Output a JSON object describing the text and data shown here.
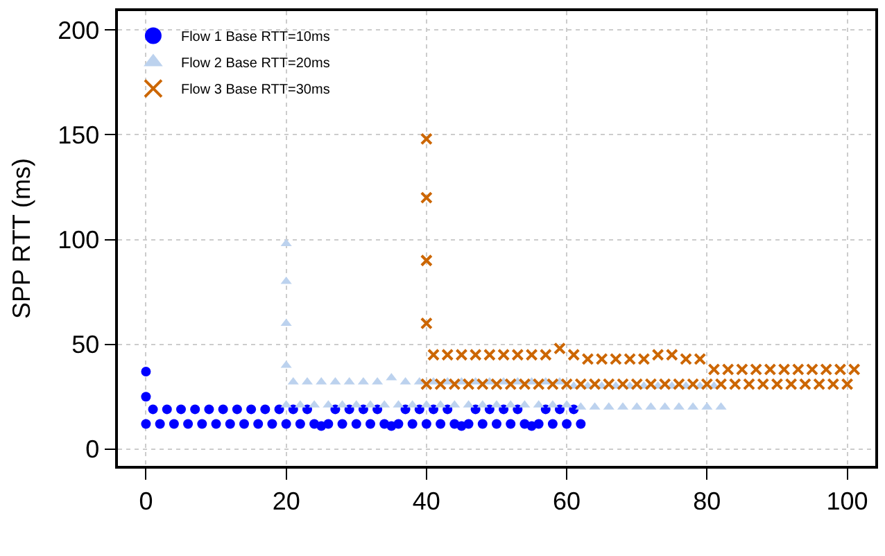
{
  "chart_data": {
    "type": "scatter",
    "ylabel": "SPP RTT (ms)",
    "xlim": [
      -4,
      104
    ],
    "ylim": [
      -8,
      209
    ],
    "xticks": [
      0,
      20,
      40,
      60,
      80,
      100
    ],
    "yticks": [
      0,
      50,
      100,
      150,
      200
    ],
    "grid": true,
    "legend": "top left",
    "series": [
      {
        "name": "Flow 1 Base RTT=10ms",
        "color": "#0000ff",
        "marker": "circle",
        "x": [
          0,
          0,
          0,
          1,
          2,
          3,
          4,
          5,
          6,
          7,
          8,
          9,
          10,
          11,
          12,
          13,
          14,
          15,
          16,
          17,
          18,
          19,
          20,
          21,
          22,
          23,
          24,
          25,
          26,
          27,
          28,
          29,
          30,
          31,
          32,
          33,
          34,
          35,
          36,
          37,
          38,
          39,
          40,
          41,
          42,
          43,
          44,
          45,
          46,
          47,
          48,
          49,
          50,
          51,
          52,
          53,
          54,
          55,
          56,
          57,
          58,
          59,
          60,
          61,
          62
        ],
        "values": [
          37,
          25,
          12,
          19,
          12,
          19,
          12,
          19,
          12,
          19,
          12,
          19,
          12,
          19,
          12,
          19,
          12,
          19,
          12,
          19,
          12,
          19,
          12,
          19,
          12,
          19,
          12,
          11,
          12,
          19,
          12,
          19,
          12,
          19,
          12,
          19,
          12,
          11,
          12,
          19,
          12,
          19,
          12,
          19,
          12,
          19,
          12,
          11,
          12,
          19,
          12,
          19,
          12,
          19,
          12,
          19,
          12,
          11,
          12,
          19,
          12,
          19,
          12,
          19,
          12
        ]
      },
      {
        "name": "Flow 2 Base RTT=20ms",
        "color": "#bcd2ee",
        "marker": "triangle",
        "x": [
          20,
          20,
          20,
          20,
          20,
          21,
          22,
          23,
          24,
          25,
          26,
          27,
          28,
          29,
          30,
          31,
          32,
          33,
          34,
          35,
          36,
          37,
          38,
          39,
          40,
          41,
          42,
          43,
          44,
          45,
          46,
          47,
          48,
          49,
          50,
          51,
          52,
          53,
          54,
          55,
          56,
          57,
          58,
          59,
          60,
          61,
          62,
          63,
          64,
          65,
          66,
          67,
          68,
          69,
          70,
          71,
          72,
          73,
          74,
          75,
          76,
          77,
          78,
          79,
          80,
          81,
          82
        ],
        "values": [
          98,
          80,
          60,
          40,
          21,
          32,
          21,
          32,
          21,
          32,
          21,
          32,
          21,
          32,
          21,
          32,
          21,
          32,
          21,
          34,
          21,
          32,
          21,
          32,
          21,
          32,
          21,
          32,
          21,
          32,
          21,
          32,
          21,
          32,
          21,
          32,
          21,
          32,
          21,
          32,
          21,
          32,
          21,
          32,
          21,
          30,
          20,
          30,
          20,
          30,
          20,
          30,
          20,
          30,
          20,
          30,
          20,
          30,
          20,
          30,
          20,
          30,
          20,
          30,
          20,
          30,
          20
        ]
      },
      {
        "name": "Flow 3 Base RTT=30ms",
        "color": "#cc6600",
        "marker": "cross",
        "x": [
          40,
          40,
          40,
          40,
          40,
          41,
          42,
          43,
          44,
          45,
          46,
          47,
          48,
          49,
          50,
          51,
          52,
          53,
          54,
          55,
          56,
          57,
          58,
          59,
          60,
          61,
          62,
          63,
          64,
          65,
          66,
          67,
          68,
          69,
          70,
          71,
          72,
          73,
          74,
          75,
          76,
          77,
          78,
          79,
          80,
          81,
          82,
          83,
          84,
          85,
          86,
          87,
          88,
          89,
          90,
          91,
          92,
          93,
          94,
          95,
          96,
          97,
          98,
          99,
          100,
          101
        ],
        "values": [
          148,
          120,
          90,
          60,
          31,
          45,
          31,
          45,
          31,
          45,
          31,
          45,
          31,
          45,
          31,
          45,
          31,
          45,
          31,
          45,
          31,
          45,
          31,
          48,
          31,
          45,
          31,
          43,
          31,
          43,
          31,
          43,
          31,
          43,
          31,
          43,
          31,
          45,
          31,
          45,
          31,
          43,
          31,
          43,
          31,
          38,
          31,
          38,
          31,
          38,
          31,
          38,
          31,
          38,
          31,
          38,
          31,
          38,
          31,
          38,
          31,
          38,
          31,
          38,
          31,
          38
        ]
      }
    ]
  }
}
